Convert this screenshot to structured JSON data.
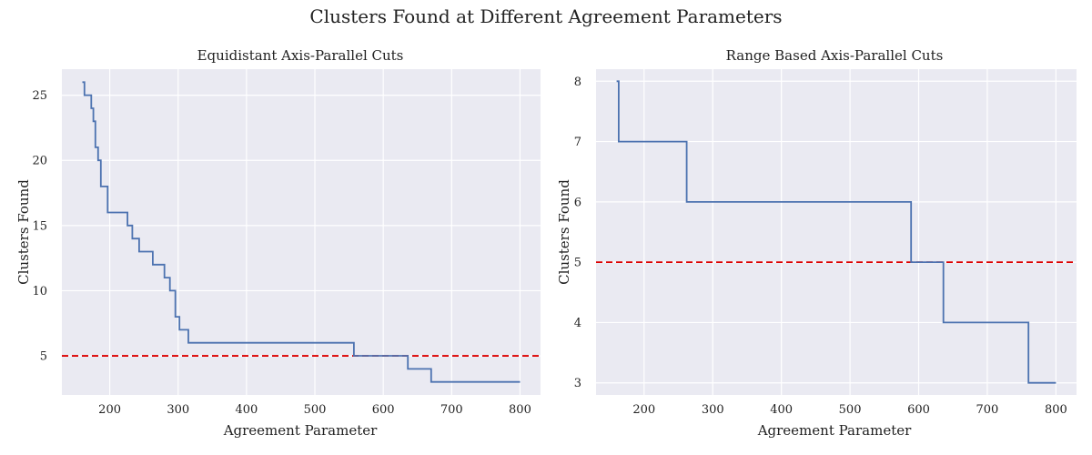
{
  "figure": {
    "title": "Clusters Found at Different Agreement Parameters"
  },
  "colors": {
    "background": "#eaeaf2",
    "grid": "#ffffff",
    "series": "#4c72b0",
    "reference_line": "#dd0000"
  },
  "chart_data": [
    {
      "type": "line",
      "title": "Equidistant Axis-Parallel Cuts",
      "xlabel": "Agreement Parameter",
      "ylabel": "Clusters Found",
      "xlim": [
        130,
        830
      ],
      "ylim": [
        2,
        27
      ],
      "xticks": [
        200,
        300,
        400,
        500,
        600,
        700,
        800
      ],
      "yticks": [
        5,
        10,
        15,
        20,
        25
      ],
      "grid": true,
      "step": true,
      "reference_line": {
        "orientation": "horizontal",
        "y": 5,
        "style": "dashed",
        "color": "#dd0000"
      },
      "series": [
        {
          "x": [
            160,
            163,
            173,
            176,
            179,
            183,
            187,
            191,
            197,
            226,
            229,
            233,
            243,
            263,
            280,
            284,
            288,
            296,
            299,
            302,
            315,
            557,
            636,
            670,
            800
          ],
          "y": [
            26,
            25,
            24,
            23,
            21,
            20,
            18,
            18,
            16,
            15,
            15,
            14,
            13,
            12,
            11,
            11,
            10,
            8,
            8,
            7,
            6,
            5,
            4,
            3,
            3
          ]
        }
      ]
    },
    {
      "type": "line",
      "title": "Range Based Axis-Parallel Cuts",
      "xlabel": "Agreement Parameter",
      "ylabel": "Clusters Found",
      "xlim": [
        130,
        830
      ],
      "ylim": [
        2.8,
        8.2
      ],
      "xticks": [
        200,
        300,
        400,
        500,
        600,
        700,
        800
      ],
      "yticks": [
        3,
        4,
        5,
        6,
        7,
        8
      ],
      "grid": true,
      "step": true,
      "reference_line": {
        "orientation": "horizontal",
        "y": 5,
        "style": "dashed",
        "color": "#dd0000"
      },
      "series": [
        {
          "x": [
            160,
            163,
            262,
            589,
            636,
            760,
            800
          ],
          "y": [
            8,
            7,
            6,
            5,
            4,
            3,
            3
          ]
        }
      ]
    }
  ]
}
